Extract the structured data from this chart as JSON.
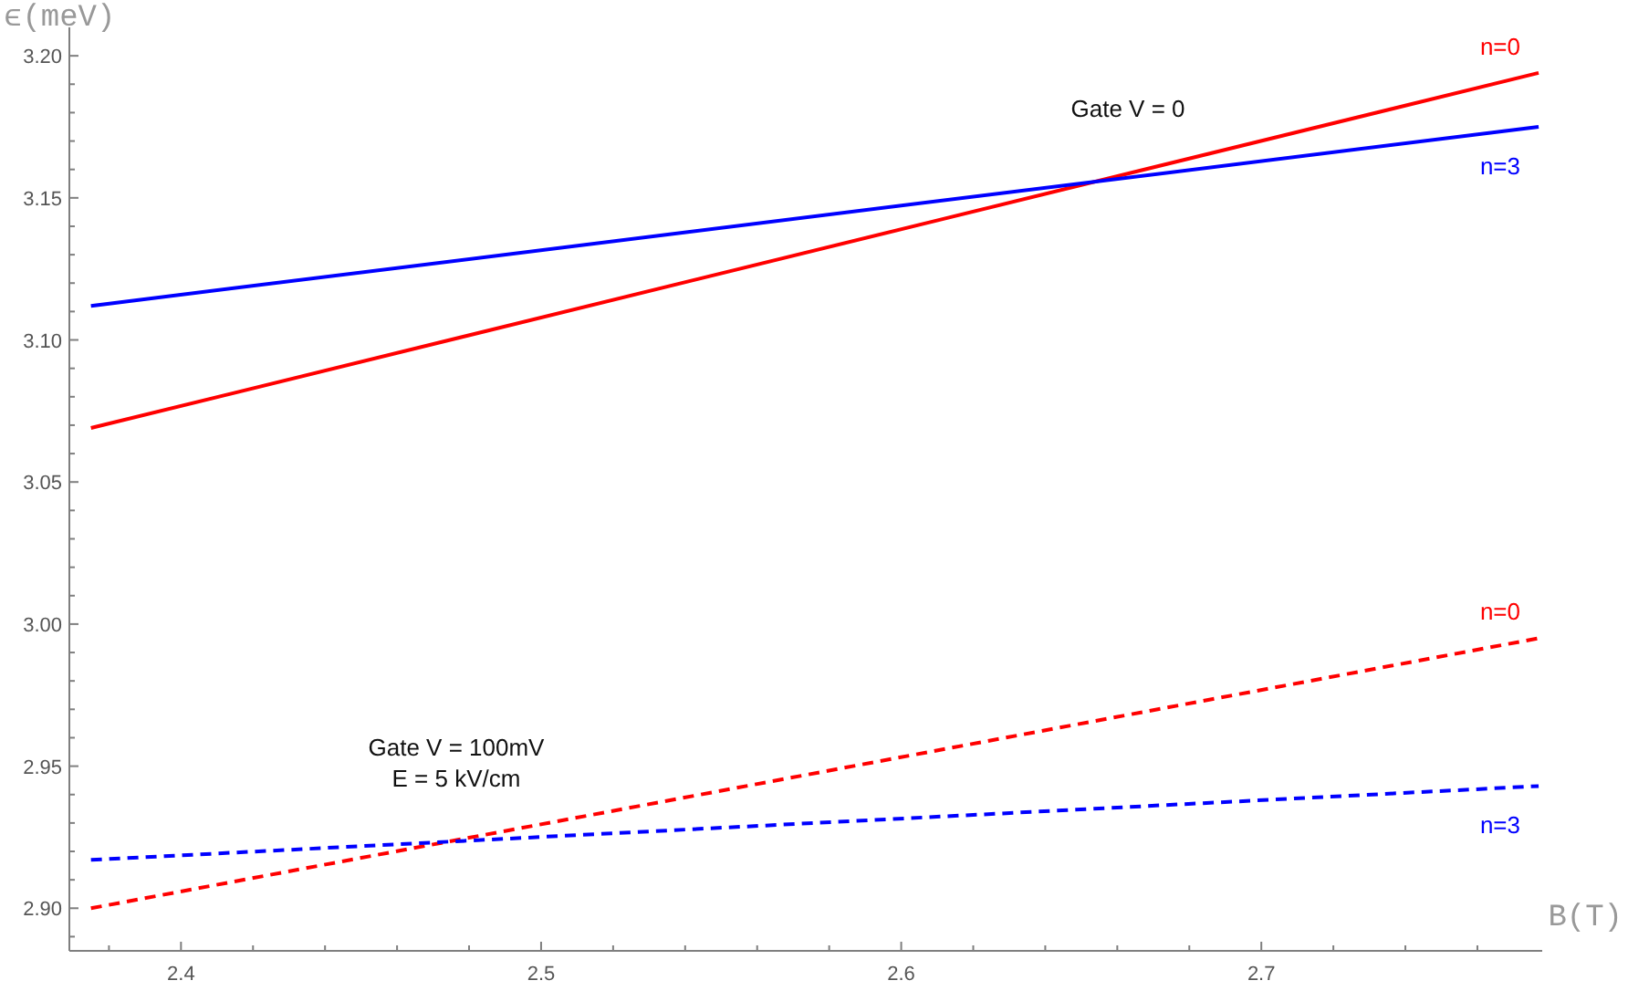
{
  "chart_data": {
    "type": "line",
    "xlabel": "B(T)",
    "ylabel": "ϵ(meV)",
    "xlim": [
      2.369,
      2.778
    ],
    "ylim": [
      2.885,
      3.21
    ],
    "xticks": [
      {
        "value": 2.38,
        "label": null
      },
      2.4,
      {
        "value": 2.42,
        "label": null
      },
      {
        "value": 2.44,
        "label": null
      },
      {
        "value": 2.46,
        "label": null
      },
      {
        "value": 2.48,
        "label": null
      },
      2.5,
      {
        "value": 2.52,
        "label": null
      },
      {
        "value": 2.54,
        "label": null
      },
      {
        "value": 2.56,
        "label": null
      },
      {
        "value": 2.58,
        "label": null
      },
      2.6,
      {
        "value": 2.62,
        "label": null
      },
      {
        "value": 2.64,
        "label": null
      },
      {
        "value": 2.66,
        "label": null
      },
      {
        "value": 2.68,
        "label": null
      },
      2.7,
      {
        "value": 2.72,
        "label": null
      },
      {
        "value": 2.74,
        "label": null
      },
      {
        "value": 2.76,
        "label": null
      }
    ],
    "yticks": [
      {
        "value": 2.89,
        "label": null
      },
      {
        "value": 2.9,
        "label": "2.90"
      },
      {
        "value": 2.91,
        "label": null
      },
      {
        "value": 2.92,
        "label": null
      },
      {
        "value": 2.93,
        "label": null
      },
      {
        "value": 2.94,
        "label": null
      },
      2.95,
      {
        "value": 2.96,
        "label": null
      },
      {
        "value": 2.97,
        "label": null
      },
      {
        "value": 2.98,
        "label": null
      },
      {
        "value": 2.99,
        "label": null
      },
      {
        "value": 3.0,
        "label": "3.00"
      },
      {
        "value": 3.01,
        "label": null
      },
      {
        "value": 3.02,
        "label": null
      },
      {
        "value": 3.03,
        "label": null
      },
      {
        "value": 3.04,
        "label": null
      },
      3.05,
      {
        "value": 3.06,
        "label": null
      },
      {
        "value": 3.07,
        "label": null
      },
      {
        "value": 3.08,
        "label": null
      },
      {
        "value": 3.09,
        "label": null
      },
      {
        "value": 3.1,
        "label": "3.10"
      },
      {
        "value": 3.11,
        "label": null
      },
      {
        "value": 3.12,
        "label": null
      },
      {
        "value": 3.13,
        "label": null
      },
      {
        "value": 3.14,
        "label": null
      },
      3.15,
      {
        "value": 3.16,
        "label": null
      },
      {
        "value": 3.17,
        "label": null
      },
      {
        "value": 3.18,
        "label": null
      },
      {
        "value": 3.19,
        "label": null
      },
      {
        "value": 3.2,
        "label": "3.20"
      }
    ],
    "x": [
      2.375,
      2.777
    ],
    "series": [
      {
        "name": "n=0",
        "color": "#ff0000",
        "values": [
          3.069,
          3.194
        ],
        "line_style": "solid"
      },
      {
        "name": "n=3",
        "color": "#0000ff",
        "values": [
          3.112,
          3.175
        ],
        "line_style": "solid"
      },
      {
        "name": "n=0",
        "color": "#ff0000",
        "values": [
          2.9,
          2.995
        ],
        "line_style": "dashed"
      },
      {
        "name": "n=3",
        "color": "#0000ff",
        "values": [
          2.917,
          2.943
        ],
        "line_style": "dashed"
      }
    ],
    "annotations": [
      "Gate V = 0",
      "Gate V = 100mV\nE = 5 kV/cm"
    ],
    "grid": false,
    "marker": "none"
  }
}
